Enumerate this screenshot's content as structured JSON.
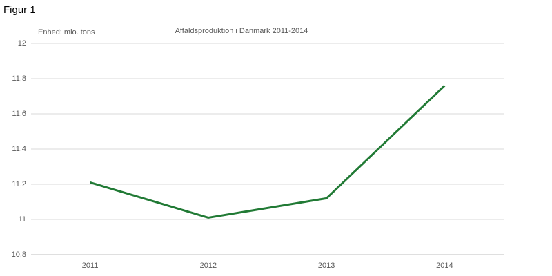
{
  "figure_label": "Figur 1",
  "chart_data": {
    "type": "line",
    "title": "Affaldsproduktion  i Danmark 2011-2014",
    "y_label": "Enhed: mio. tons",
    "categories": [
      "2011",
      "2012",
      "2013",
      "2014"
    ],
    "series": [
      {
        "name": "Affaldsproduktion",
        "color": "#217a35",
        "values": [
          11.21,
          11.01,
          11.12,
          11.76
        ]
      }
    ],
    "ylim": [
      10.8,
      12
    ],
    "yticks": [
      {
        "value": 10.8,
        "label": "10,8"
      },
      11,
      {
        "value": 11.2,
        "label": "11,2"
      },
      {
        "value": 11.4,
        "label": "11,4"
      },
      {
        "value": 11.6,
        "label": "11,6"
      },
      {
        "value": 11.8,
        "label": "11,8"
      },
      12
    ],
    "grid": true,
    "legend": false
  }
}
